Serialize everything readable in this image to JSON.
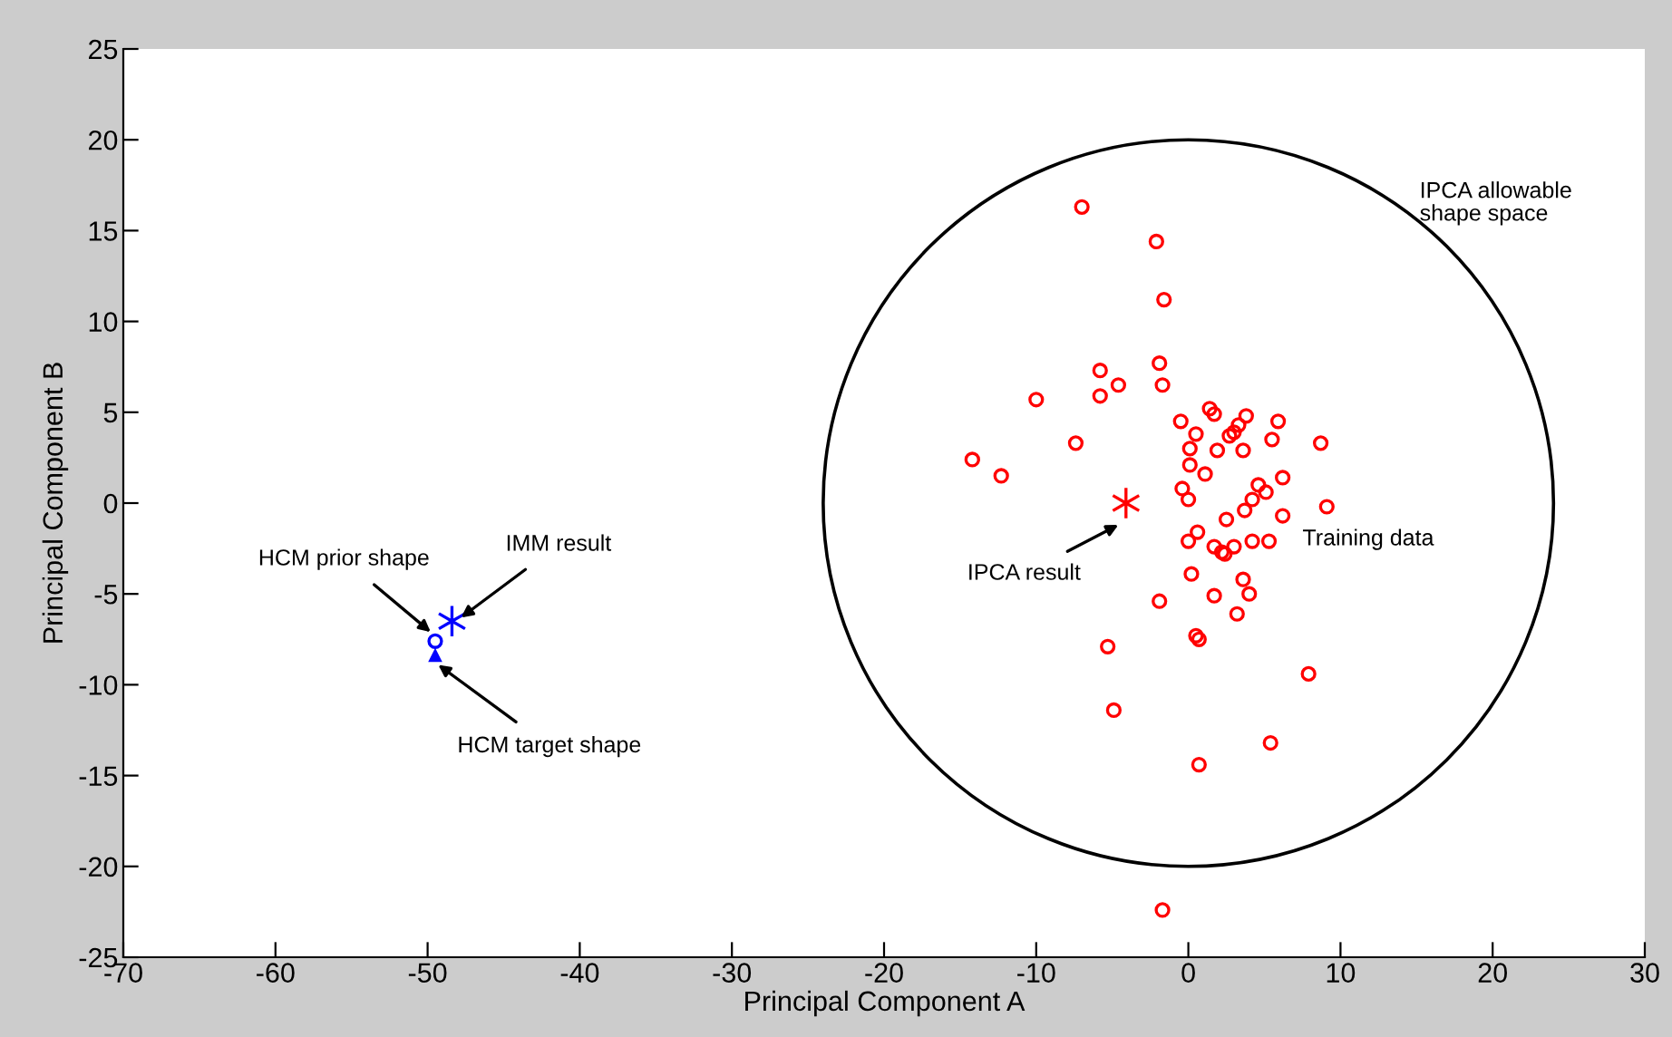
{
  "chart_data": {
    "type": "scatter",
    "xlabel": "Principal Component A",
    "ylabel": "Principal Component B",
    "xlim": [
      -70,
      30
    ],
    "ylim": [
      -25,
      25
    ],
    "xticks": [
      -70,
      -60,
      -50,
      -40,
      -30,
      -20,
      -10,
      0,
      10,
      20,
      30
    ],
    "yticks": [
      -25,
      -20,
      -15,
      -10,
      -5,
      0,
      5,
      10,
      15,
      20,
      25
    ],
    "grid": false,
    "legend": false,
    "series": [
      {
        "color": "#ff0000",
        "marker": "circle",
        "x": [
          -7.0,
          -2.1,
          -1.6,
          -1.9,
          -5.8,
          -4.6,
          -1.7,
          -10.0,
          -5.8,
          1.4,
          1.7,
          3.8,
          5.9,
          -0.5,
          3.3,
          3.0,
          2.7,
          0.5,
          5.5,
          8.7,
          -7.4,
          0.1,
          1.9,
          3.6,
          -14.2,
          0.1,
          -12.3,
          1.1,
          6.2,
          4.6,
          -0.4,
          5.1,
          4.2,
          0.0,
          3.7,
          9.1,
          6.2,
          2.5,
          0.6,
          0.0,
          4.2,
          5.3,
          1.7,
          3.0,
          2.2,
          2.4,
          0.2,
          3.6,
          1.7,
          4.0,
          -1.9,
          3.2,
          -5.3,
          0.5,
          0.7,
          7.9,
          -4.9,
          5.4,
          0.7,
          -1.7
        ],
        "values": [
          16.3,
          14.4,
          11.2,
          7.7,
          7.3,
          6.5,
          6.5,
          5.7,
          5.9,
          5.2,
          4.9,
          4.8,
          4.5,
          4.5,
          4.3,
          3.9,
          3.7,
          3.8,
          3.5,
          3.3,
          3.3,
          3.0,
          2.9,
          2.9,
          2.4,
          2.1,
          1.5,
          1.6,
          1.4,
          1.0,
          0.8,
          0.6,
          0.2,
          0.2,
          -0.4,
          -0.2,
          -0.7,
          -0.9,
          -1.6,
          -2.1,
          -2.1,
          -2.1,
          -2.4,
          -2.4,
          -2.7,
          -2.8,
          -3.9,
          -4.2,
          -5.1,
          -5.0,
          -5.4,
          -6.1,
          -7.9,
          -7.3,
          -7.5,
          -9.4,
          -11.4,
          -13.2,
          -14.4,
          -22.4
        ]
      },
      {
        "color": "#ff0000",
        "marker": "cross",
        "x": [
          -4.1
        ],
        "values": [
          0
        ]
      },
      {
        "color": "#0000ff",
        "marker": "cross",
        "x": [
          -48.4
        ],
        "values": [
          -6.5
        ]
      },
      {
        "color": "#0000ff",
        "marker": "circle",
        "x": [
          -49.5
        ],
        "values": [
          -7.6
        ]
      },
      {
        "color": "#0000ff",
        "marker": "triangle",
        "x": [
          -49.5
        ],
        "values": [
          -8.4
        ]
      }
    ],
    "annotations": [
      "IPCA allowable\nshape space",
      "Training data",
      {
        "text": "IPCA result",
        "x": -4.6,
        "y": -1.2
      },
      {
        "text": "HCM prior shape",
        "x": -49.8,
        "y": -7.1
      },
      {
        "text": "IMM result",
        "x": -47.8,
        "y": -6.3
      },
      {
        "text": "HCM target shape",
        "x": -49.3,
        "y": -8.9
      }
    ]
  }
}
